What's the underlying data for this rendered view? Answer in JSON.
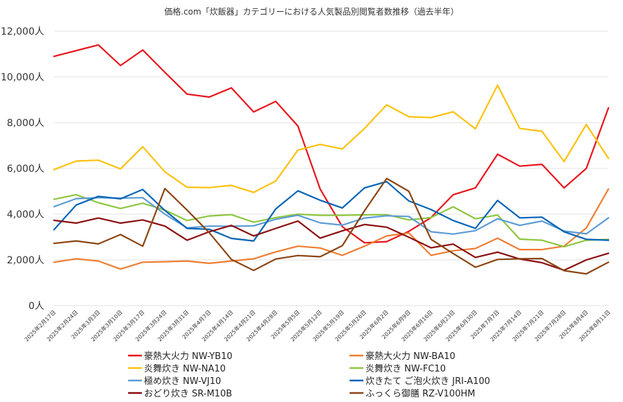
{
  "chart_data": {
    "type": "line",
    "title": "価格.com「炊飯器」カテゴリーにおける人気製品別閲覧者数推移（過去半年）",
    "xlabel": "",
    "ylabel": "",
    "ylim": [
      0,
      12000
    ],
    "yticks": [
      "0人",
      "2,000人",
      "4,000人",
      "6,000人",
      "8,000人",
      "10,000人",
      "12,000人"
    ],
    "yticks_values": [
      0,
      2000,
      4000,
      6000,
      8000,
      10000,
      12000
    ],
    "grid": true,
    "legend_position": "bottom",
    "categories": [
      "2025年2月17日",
      "2025年2月24日",
      "2025年3月3日",
      "2025年3月10日",
      "2025年3月17日",
      "2025年3月24日",
      "2025年3月31日",
      "2025年4月7日",
      "2025年4月14日",
      "2025年4月21日",
      "2025年4月28日",
      "2025年5月5日",
      "2025年5月12日",
      "2025年5月19日",
      "2025年5月26日",
      "2025年6月2日",
      "2025年6月9日",
      "2025年6月16日",
      "2025年6月23日",
      "2025年6月30日",
      "2025年7月7日",
      "2025年7月14日",
      "2025年7月21日",
      "2025年7月28日",
      "2025年8月4日",
      "2025年8月11日"
    ],
    "series": [
      {
        "name": "豪熱大火力 NW-YB10",
        "color": "#e8141b",
        "values": [
          10900,
          11150,
          11400,
          10500,
          11180,
          10200,
          9250,
          9120,
          9520,
          8470,
          8930,
          7850,
          5100,
          3450,
          2750,
          2800,
          3250,
          3850,
          4850,
          5150,
          6620,
          6100,
          6180,
          5150,
          6000,
          8650
        ]
      },
      {
        "name": "豪熱大火力 NW-BA10",
        "color": "#ee7d31",
        "values": [
          1900,
          2050,
          1950,
          1600,
          1900,
          1920,
          1950,
          1850,
          1950,
          2050,
          2350,
          2600,
          2520,
          2200,
          2600,
          3050,
          3180,
          2200,
          2400,
          2500,
          2950,
          2450,
          2450,
          2600,
          3400,
          5100
        ]
      },
      {
        "name": "炎舞炊き NW-NA10",
        "color": "#fdc10c",
        "values": [
          5950,
          6320,
          6360,
          5980,
          6950,
          5850,
          5180,
          5160,
          5260,
          4950,
          5450,
          6800,
          7050,
          6850,
          7750,
          8780,
          8260,
          8220,
          8480,
          7730,
          9640,
          7750,
          7620,
          6300,
          7920,
          6440
        ]
      },
      {
        "name": "炎舞炊き NW-FC10",
        "color": "#8dc63f",
        "values": [
          4650,
          4850,
          4500,
          4250,
          4480,
          4180,
          3720,
          3920,
          3980,
          3650,
          3850,
          4000,
          3950,
          3950,
          3970,
          3980,
          3750,
          3850,
          4320,
          3800,
          3960,
          2910,
          2860,
          2580,
          2860,
          2900
        ]
      },
      {
        "name": "極め炊き NW-VJ10",
        "color": "#5b9bd5",
        "values": [
          4330,
          4680,
          4720,
          4700,
          4720,
          4000,
          3400,
          3480,
          3470,
          3490,
          3780,
          3950,
          3620,
          3520,
          3830,
          3930,
          3900,
          3230,
          3130,
          3280,
          3800,
          3510,
          3700,
          3260,
          3140,
          3840
        ]
      },
      {
        "name": "炊きたて ご泡火炊き JRI-A100",
        "color": "#0463b5",
        "values": [
          3320,
          4400,
          4780,
          4670,
          5080,
          4160,
          3380,
          3340,
          2940,
          2830,
          4230,
          5020,
          4610,
          4270,
          5150,
          5420,
          4580,
          4200,
          3720,
          3380,
          4600,
          3840,
          3870,
          3230,
          2900,
          2860
        ]
      },
      {
        "name": "おどり炊き SR-M10B",
        "color": "#8b0d0f",
        "values": [
          3730,
          3610,
          3830,
          3610,
          3750,
          3480,
          2860,
          3230,
          3510,
          3050,
          3380,
          3700,
          2950,
          3270,
          3550,
          3430,
          2990,
          2530,
          2690,
          2110,
          2340,
          2040,
          1880,
          1550,
          2000,
          2290
        ]
      },
      {
        "name": "ふっくら御膳 RZ-V100HM",
        "color": "#8b4513",
        "values": [
          2720,
          2830,
          2700,
          3110,
          2600,
          5120,
          4180,
          3190,
          2020,
          1540,
          2040,
          2190,
          2140,
          2620,
          4150,
          5560,
          5000,
          2900,
          2280,
          1680,
          2020,
          2050,
          2060,
          1530,
          1390,
          1900
        ]
      }
    ]
  }
}
